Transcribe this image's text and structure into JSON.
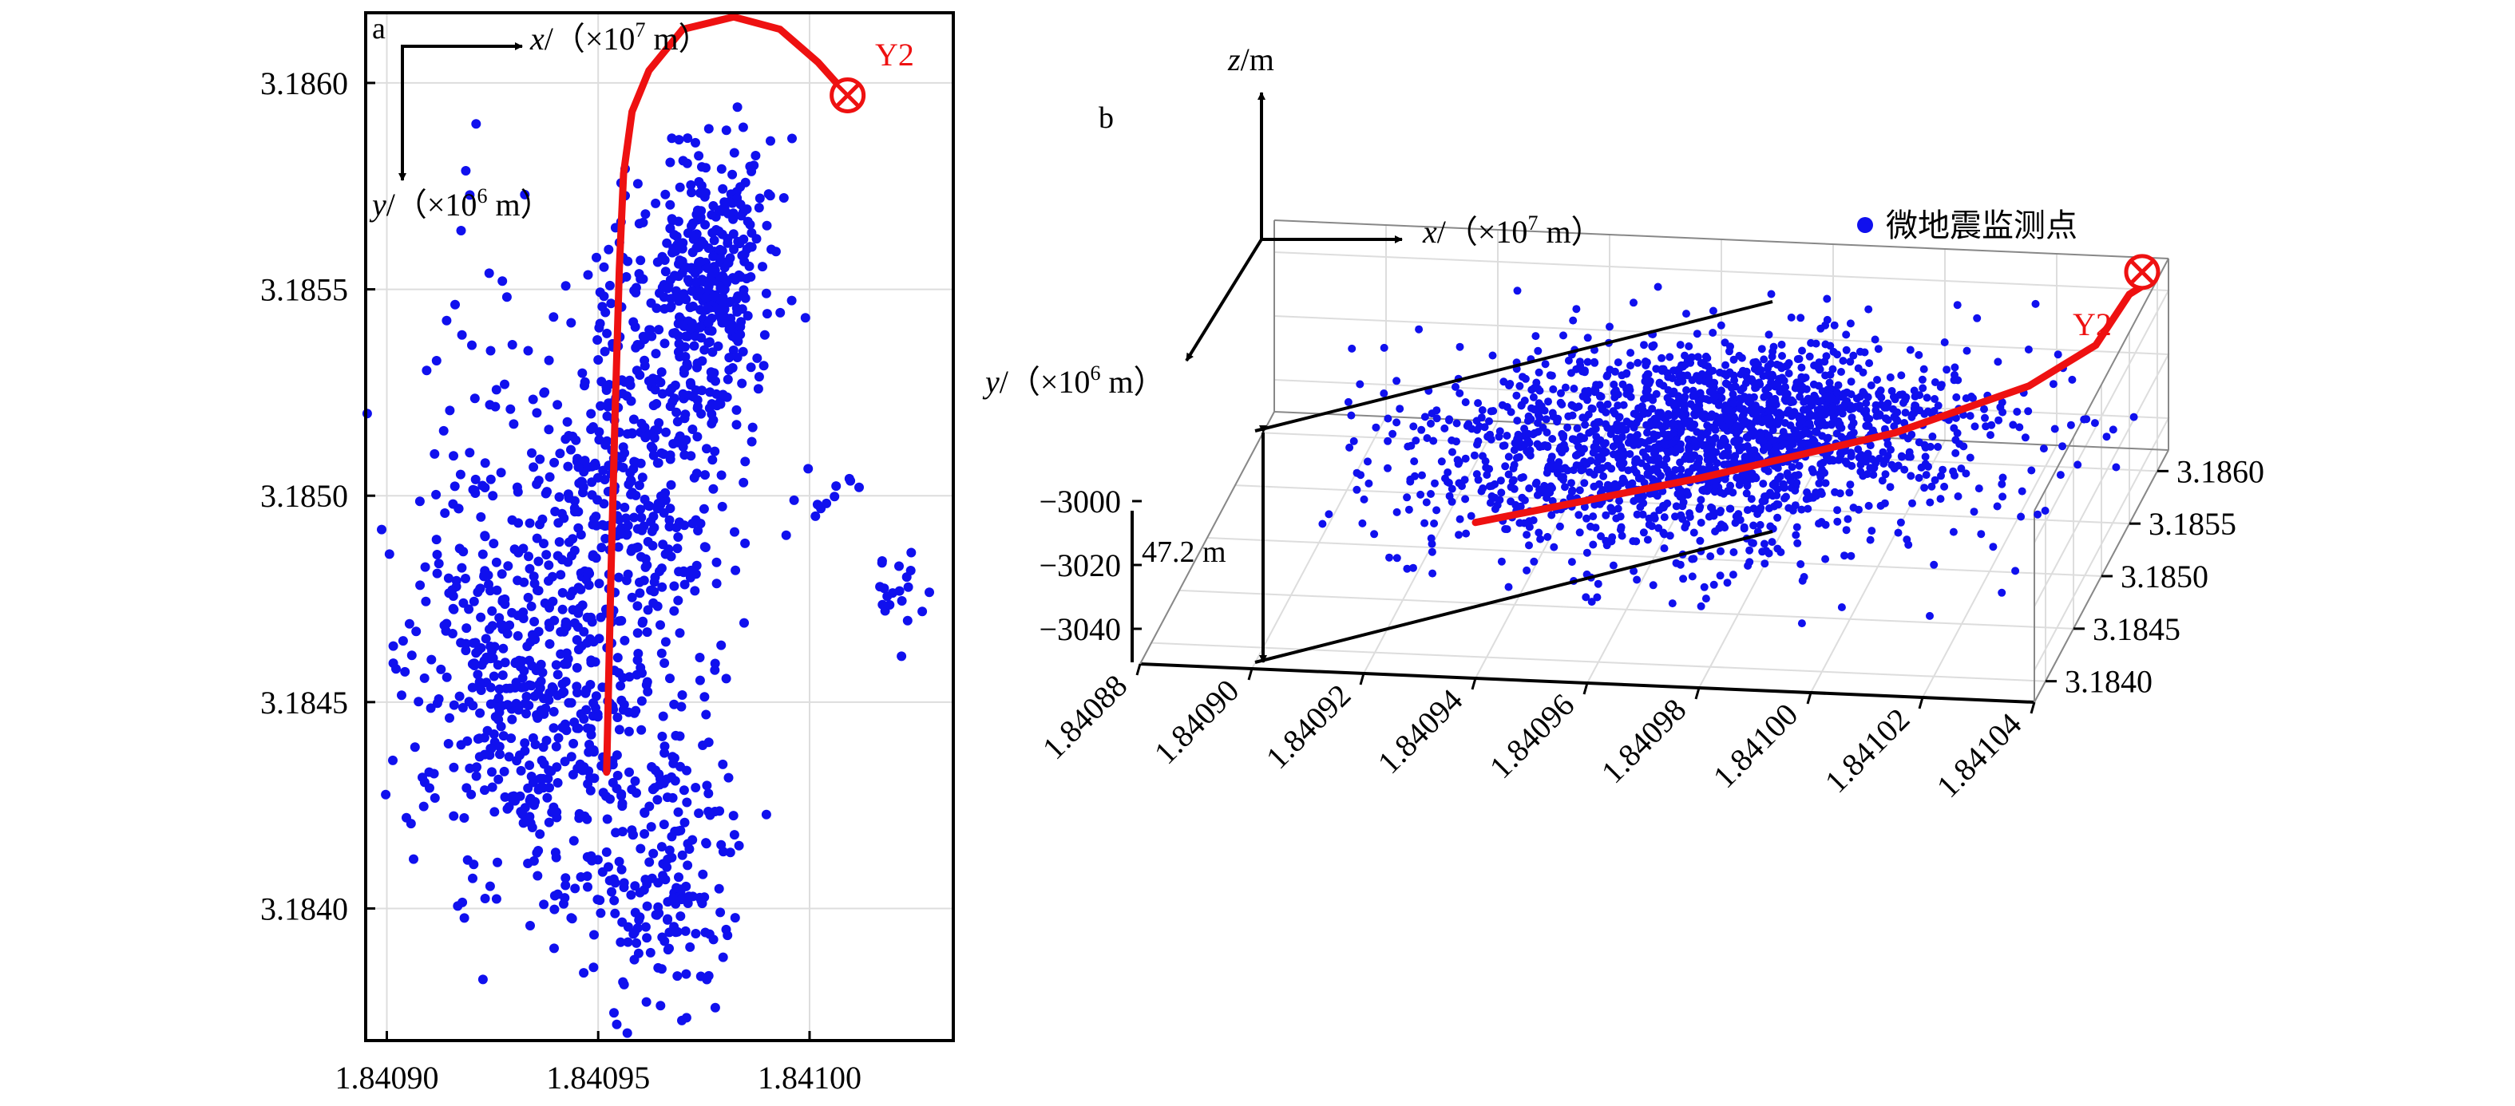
{
  "colors": {
    "points": "#1010ee",
    "well": "#ee1111",
    "axis": "#000000",
    "grid": "#dddddd"
  },
  "chart_data": [
    {
      "type": "scatter",
      "panel_label": "a",
      "view": "plan",
      "xlim": [
        1.840895,
        1.841034
      ],
      "ylim": [
        3.18368,
        3.18617
      ],
      "xticks": [
        1.8409,
        1.84095,
        1.841
      ],
      "xtick_labels": [
        "1.84090",
        "1.84095",
        "1.84100"
      ],
      "yticks": [
        3.184,
        3.1845,
        3.185,
        3.1855,
        3.186
      ],
      "ytick_labels": [
        "3.1840",
        "3.1845",
        "3.1850",
        "3.1855",
        "3.1860"
      ],
      "xlabel_prefix": "x",
      "xlabel_rest": "/（×10",
      "xlabel_exp": "7",
      "xlabel_unit": " m）",
      "ylabel_prefix": "y",
      "ylabel_rest": "/（×10",
      "ylabel_exp": "6",
      "ylabel_unit": " m）",
      "clusters": [
        {
          "cx": 1.840976,
          "cy": 3.185525,
          "sx": 7.2e-06,
          "sy": 0.000165,
          "n": 360
        },
        {
          "cx": 1.840958,
          "cy": 3.18505,
          "sx": 1.2e-05,
          "sy": 0.00026,
          "n": 420
        },
        {
          "cx": 1.84094,
          "cy": 3.18445,
          "sx": 1.15e-05,
          "sy": 0.00023,
          "n": 320
        },
        {
          "cx": 1.840965,
          "cy": 3.18412,
          "sx": 9.5e-06,
          "sy": 0.0002,
          "n": 200
        },
        {
          "cx": 1.840925,
          "cy": 3.18472,
          "sx": 1.25e-05,
          "sy": 0.00038,
          "n": 240
        },
        {
          "cx": 1.84102,
          "cy": 3.18476,
          "sx": 4e-06,
          "sy": 5.5e-05,
          "n": 20
        },
        {
          "cx": 1.841005,
          "cy": 3.185,
          "sx": 6e-06,
          "sy": 4.5e-05,
          "n": 12
        }
      ],
      "well_path": {
        "x": [
          1.840952,
          1.840953,
          1.840954,
          1.840955,
          1.840956,
          1.840958,
          1.840962,
          1.84097,
          1.840982,
          1.840993,
          1.841002,
          1.841009
        ],
        "y": [
          3.18433,
          3.1848,
          3.1852,
          3.18555,
          3.18578,
          3.18593,
          3.18603,
          3.18613,
          3.18616,
          3.18613,
          3.18605,
          3.18597
        ]
      },
      "well_name": "Y2"
    },
    {
      "type": "scatter3d",
      "panel_label": "b",
      "view": "oblique",
      "xlim": [
        1.84088,
        1.84104
      ],
      "ylim": [
        3.1838,
        3.1862
      ],
      "zlim": [
        -3050,
        -2990
      ],
      "xticks": [
        1.84088,
        1.8409,
        1.84092,
        1.84094,
        1.84096,
        1.84098,
        1.841,
        1.84102,
        1.84104
      ],
      "xtick_labels": [
        "1.84088",
        "1.84090",
        "1.84092",
        "1.84094",
        "1.84096",
        "1.84098",
        "1.84100",
        "1.84102",
        "1.84104"
      ],
      "yticks": [
        3.184,
        3.1845,
        3.185,
        3.1855,
        3.186
      ],
      "ytick_labels": [
        "3.1840",
        "3.1845",
        "3.1850",
        "3.1855",
        "3.1860"
      ],
      "zticks": [
        -3000,
        -3020,
        -3040
      ],
      "ztick_labels": [
        "−3000",
        "−3020",
        "−3040"
      ],
      "zlabel_prefix": "z",
      "zlabel_unit": "/m",
      "xlabel_prefix": "x",
      "xlabel_rest": "/（×10",
      "xlabel_exp": "7",
      "xlabel_unit": " m）",
      "ylabel_prefix": "y",
      "ylabel_rest": "/（×10",
      "ylabel_exp": "6",
      "ylabel_unit": " m）",
      "legend_label": "微地震监测点",
      "thickness_annotation": "47.2 m",
      "well_name": "Y2",
      "well_path_3d": {
        "x": [
          1.840935,
          1.84097,
          1.841,
          1.84102,
          1.84103,
          1.841035
        ],
        "y": [
          3.1843,
          3.1848,
          3.1853,
          3.1857,
          3.1859,
          3.186
        ],
        "z": [
          -3018,
          -3018,
          -3018,
          -3015,
          -3008,
          -2995
        ]
      }
    }
  ]
}
